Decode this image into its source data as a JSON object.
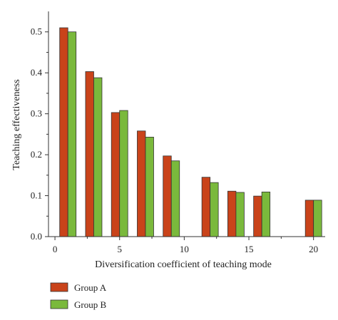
{
  "chart_data": {
    "type": "bar",
    "xlabel": "Diversification coefficient of teaching mode",
    "ylabel": "Teaching effectiveness",
    "xlim": [
      -0.5,
      20.9
    ],
    "ylim": [
      0,
      0.55
    ],
    "x_ticks": [
      0,
      5,
      10,
      15,
      20
    ],
    "y_ticks": [
      0.0,
      0.1,
      0.2,
      0.3,
      0.4,
      0.5
    ],
    "x_tick_labels": [
      "0",
      "5",
      "10",
      "15",
      "20"
    ],
    "y_tick_labels": [
      "0.0",
      "0.1",
      "0.2",
      "0.3",
      "0.4",
      "0.5"
    ],
    "grid": false,
    "legend_position": "bottom-left",
    "x": [
      1,
      3,
      5,
      7,
      9,
      12,
      14,
      16,
      20
    ],
    "series": [
      {
        "name": "Group A",
        "color": "#c9431a",
        "values": [
          0.51,
          0.403,
          0.303,
          0.258,
          0.197,
          0.145,
          0.111,
          0.099,
          0.089
        ]
      },
      {
        "name": "Group B",
        "color": "#7ab93c",
        "values": [
          0.5,
          0.388,
          0.308,
          0.243,
          0.185,
          0.132,
          0.108,
          0.109,
          0.089
        ]
      }
    ]
  }
}
